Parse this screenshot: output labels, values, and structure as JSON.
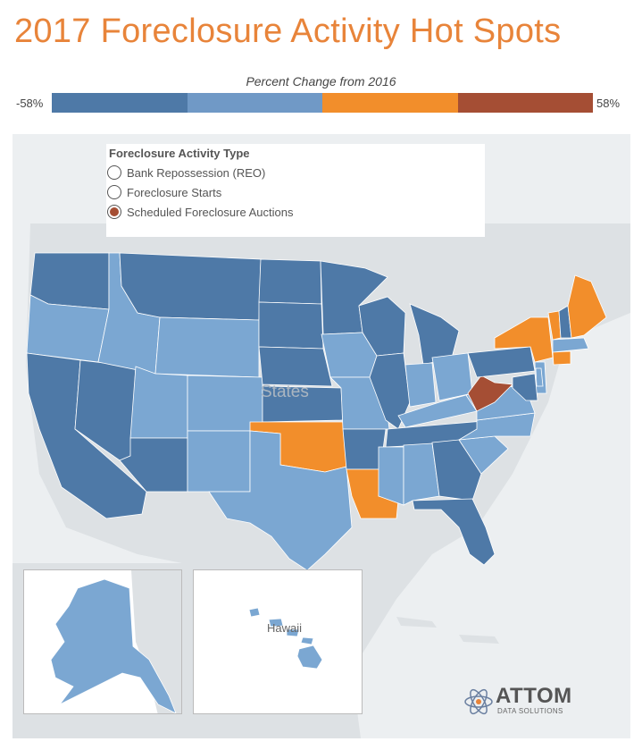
{
  "header": {
    "title": "2017 Foreclosure Activity Hot Spots"
  },
  "color_scale": {
    "title": "Percent Change from 2016",
    "min_label": "-58%",
    "max_label": "58%",
    "colors": [
      "#4e79a7",
      "#7099c6",
      "#f28e2b",
      "#a54e34"
    ]
  },
  "legend": {
    "title": "Foreclosure Activity Type",
    "options": [
      {
        "label": "Bank Repossession (REO)",
        "selected": false
      },
      {
        "label": "Foreclosure Starts",
        "selected": false
      },
      {
        "label": "Scheduled Foreclosure Auctions",
        "selected": true
      }
    ],
    "selected_color": "#a54e34"
  },
  "map": {
    "background_label": "States",
    "hawaii_label": "Hawaii",
    "category_colors": {
      "strong_decrease": "#4e79a7",
      "decrease": "#7ba7d2",
      "increase": "#f28e2b",
      "strong_increase": "#a54e34"
    },
    "states": {
      "WA": "strong_decrease",
      "OR": "decrease",
      "CA": "strong_decrease",
      "NV": "strong_decrease",
      "ID": "decrease",
      "MT": "strong_decrease",
      "WY": "decrease",
      "UT": "decrease",
      "AZ": "strong_decrease",
      "CO": "decrease",
      "NM": "decrease",
      "ND": "strong_decrease",
      "SD": "strong_decrease",
      "NE": "strong_decrease",
      "KS": "strong_decrease",
      "OK": "increase",
      "TX": "decrease",
      "MN": "strong_decrease",
      "IA": "decrease",
      "MO": "decrease",
      "AR": "strong_decrease",
      "LA": "increase",
      "WI": "strong_decrease",
      "IL": "strong_decrease",
      "MI": "strong_decrease",
      "IN": "decrease",
      "OH": "decrease",
      "KY": "decrease",
      "TN": "strong_decrease",
      "MS": "decrease",
      "AL": "decrease",
      "GA": "strong_decrease",
      "FL": "strong_decrease",
      "SC": "decrease",
      "NC": "decrease",
      "VA": "decrease",
      "WV": "strong_increase",
      "PA": "strong_decrease",
      "NY": "increase",
      "VT": "increase",
      "NH": "strong_decrease",
      "ME": "increase",
      "MA": "decrease",
      "CT": "increase",
      "NJ": "decrease",
      "MD": "strong_decrease",
      "DE": "decrease",
      "AK": "decrease",
      "HI": "decrease"
    }
  },
  "brand": {
    "name": "ATTOM",
    "tagline": "DATA SOLUTIONS"
  }
}
